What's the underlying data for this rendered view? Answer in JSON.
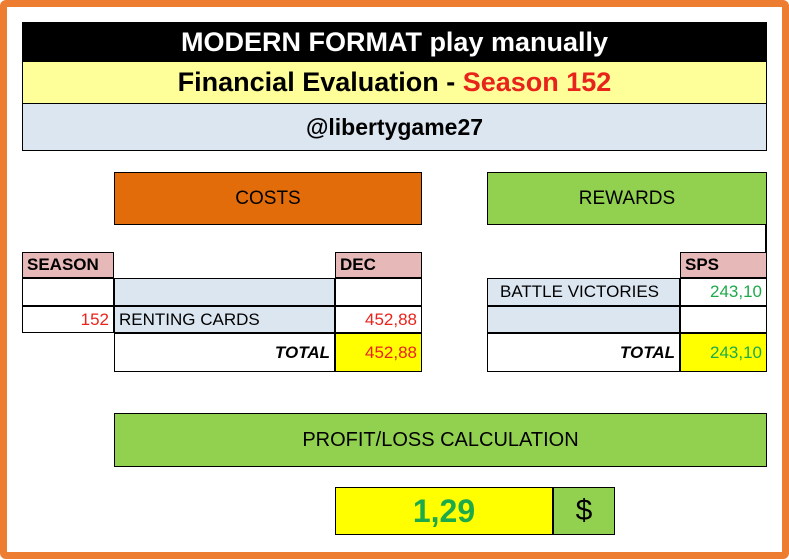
{
  "header": {
    "title": "MODERN FORMAT play manually",
    "subtitle_prefix": "Financial Evaluation - ",
    "subtitle_season": "Season 152",
    "handle": "@libertygame27"
  },
  "costs": {
    "title": "COSTS",
    "col_season": "SEASON",
    "col_dec": "DEC",
    "row_season": "152",
    "row_label": "RENTING CARDS",
    "row_value": "452,88",
    "total_label": "TOTAL",
    "total_value": "452,88"
  },
  "rewards": {
    "title": "REWARDS",
    "col_sps": "SPS",
    "row_label": "BATTLE VICTORIES",
    "row_value": "243,10",
    "total_label": "TOTAL",
    "total_value": "243,10"
  },
  "profit": {
    "title": "PROFIT/LOSS CALCULATION",
    "value": "1,29",
    "currency": "$"
  },
  "colors": {
    "border_orange": "#ed7d31",
    "title_black": "#000000",
    "subtitle_yellow": "#ffff99",
    "handle_blue": "#dce6f1",
    "costs_orange": "#e36c0a",
    "rewards_green": "#92d050",
    "header_pink": "#e6b8b7",
    "total_yellow": "#ffff00",
    "value_red": "#e8231c",
    "value_green": "#1eaa4a"
  }
}
